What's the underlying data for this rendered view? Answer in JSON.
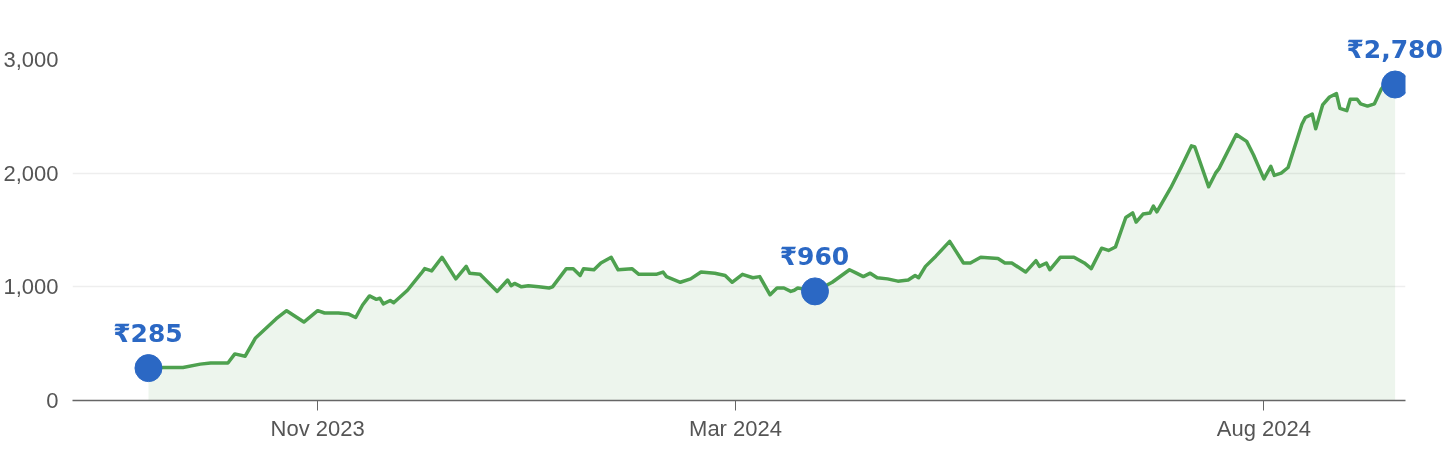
{
  "chart_data": {
    "type": "area",
    "xlim": [
      "2023-08-22",
      "2024-09-11"
    ],
    "ylim": [
      0,
      3000
    ],
    "xticks": [
      {
        "value": "2023-11-01",
        "label": "Nov 2023"
      },
      {
        "value": "2024-03-01",
        "label": "Mar 2024"
      },
      {
        "value": "2024-08-01",
        "label": "Aug 2024"
      }
    ],
    "yticks": [
      0,
      {
        "value": 1000,
        "label": "1,000"
      },
      {
        "value": 2000,
        "label": "2,000"
      },
      {
        "value": 3000,
        "label": "3,000"
      }
    ],
    "grid": "y",
    "series": [
      {
        "color": "#4ea14f",
        "x": [
          "2023-09-13",
          "2023-09-23",
          "2023-09-28",
          "2023-10-01",
          "2023-10-06",
          "2023-10-08",
          "2023-10-11",
          "2023-10-14",
          "2023-10-20",
          "2023-10-23",
          "2023-10-28",
          "2023-11-01",
          "2023-11-03",
          "2023-11-07",
          "2023-11-10",
          "2023-11-12",
          "2023-11-14",
          "2023-11-16",
          "2023-11-18",
          "2023-11-19",
          "2023-11-20",
          "2023-11-22",
          "2023-11-23",
          "2023-11-27",
          "2023-12-01",
          "2023-12-02",
          "2023-12-04",
          "2023-12-07",
          "2023-12-11",
          "2023-12-14",
          "2023-12-15",
          "2023-12-18",
          "2023-12-23",
          "2023-12-26",
          "2023-12-27",
          "2023-12-28",
          "2023-12-30",
          "2024-01-01",
          "2024-01-04",
          "2024-01-07",
          "2024-01-08",
          "2024-01-12",
          "2024-01-14",
          "2024-01-16",
          "2024-01-17",
          "2024-01-20",
          "2024-01-22",
          "2024-01-25",
          "2024-01-27",
          "2024-01-31",
          "2024-02-02",
          "2024-02-07",
          "2024-02-09",
          "2024-02-10",
          "2024-02-14",
          "2024-02-17",
          "2024-02-20",
          "2024-02-24",
          "2024-02-27",
          "2024-02-29",
          "2024-03-03",
          "2024-03-06",
          "2024-03-08",
          "2024-03-11",
          "2024-03-13",
          "2024-03-15",
          "2024-03-17",
          "2024-03-18",
          "2024-03-19",
          "2024-03-21",
          "2024-03-24",
          "2024-03-29",
          "2024-04-03",
          "2024-04-05",
          "2024-04-07",
          "2024-04-09",
          "2024-04-11",
          "2024-04-14",
          "2024-04-17",
          "2024-04-20",
          "2024-04-22",
          "2024-04-23",
          "2024-04-25",
          "2024-04-28",
          "2024-05-02",
          "2024-05-06",
          "2024-05-08",
          "2024-05-11",
          "2024-05-16",
          "2024-05-18",
          "2024-05-20",
          "2024-05-24",
          "2024-05-27",
          "2024-05-28",
          "2024-05-30",
          "2024-05-31",
          "2024-06-03",
          "2024-06-07",
          "2024-06-10",
          "2024-06-12",
          "2024-06-15",
          "2024-06-17",
          "2024-06-19",
          "2024-06-22",
          "2024-06-24",
          "2024-06-25",
          "2024-06-27",
          "2024-06-29",
          "2024-06-30",
          "2024-07-01",
          "2024-07-05",
          "2024-07-08",
          "2024-07-11",
          "2024-07-12",
          "2024-07-16",
          "2024-07-18",
          "2024-07-19",
          "2024-07-24",
          "2024-07-27",
          "2024-07-29",
          "2024-08-01",
          "2024-08-03",
          "2024-08-04",
          "2024-08-06",
          "2024-08-08",
          "2024-08-12",
          "2024-08-13",
          "2024-08-15",
          "2024-08-16",
          "2024-08-18",
          "2024-08-20",
          "2024-08-22",
          "2024-08-23",
          "2024-08-25",
          "2024-08-26",
          "2024-08-28",
          "2024-08-29",
          "2024-08-31",
          "2024-09-02",
          "2024-09-04",
          "2024-09-06",
          "2024-09-08"
        ],
        "values": [
          290,
          290,
          320,
          330,
          330,
          410,
          390,
          550,
          720,
          790,
          690,
          790,
          770,
          770,
          760,
          730,
          840,
          920,
          890,
          900,
          850,
          880,
          860,
          970,
          1120,
          1160,
          1140,
          1260,
          1070,
          1180,
          1120,
          1110,
          960,
          1060,
          1010,
          1030,
          1000,
          1010,
          1000,
          990,
          1000,
          1160,
          1160,
          1100,
          1160,
          1150,
          1210,
          1260,
          1150,
          1160,
          1110,
          1110,
          1130,
          1090,
          1040,
          1070,
          1130,
          1120,
          1100,
          1040,
          1110,
          1080,
          1090,
          930,
          990,
          990,
          960,
          970,
          990,
          980,
          960,
          1040,
          1150,
          1120,
          1090,
          1120,
          1080,
          1070,
          1050,
          1060,
          1100,
          1080,
          1180,
          1270,
          1400,
          1210,
          1210,
          1260,
          1250,
          1210,
          1210,
          1130,
          1230,
          1180,
          1210,
          1150,
          1260,
          1260,
          1210,
          1160,
          1340,
          1320,
          1350,
          1610,
          1650,
          1570,
          1640,
          1650,
          1710,
          1660,
          1870,
          2050,
          2240,
          2230,
          1880,
          2000,
          2040,
          2340,
          2280,
          2160,
          1950,
          2060,
          1980,
          2000,
          2050,
          2430,
          2490,
          2520,
          2390,
          2600,
          2670,
          2700,
          2570,
          2550,
          2650,
          2650,
          2610,
          2590,
          2610,
          2740,
          2820,
          2780
        ]
      },
      {
        "type": "scatter",
        "marker": "circle",
        "color": "#2b68c4",
        "x": [
          "2023-09-13",
          "2024-03-24",
          "2024-09-08"
        ],
        "values": [
          285,
          960,
          2780
        ],
        "value_labels": [
          "₹285",
          "₹960",
          "₹2,780"
        ]
      }
    ]
  }
}
